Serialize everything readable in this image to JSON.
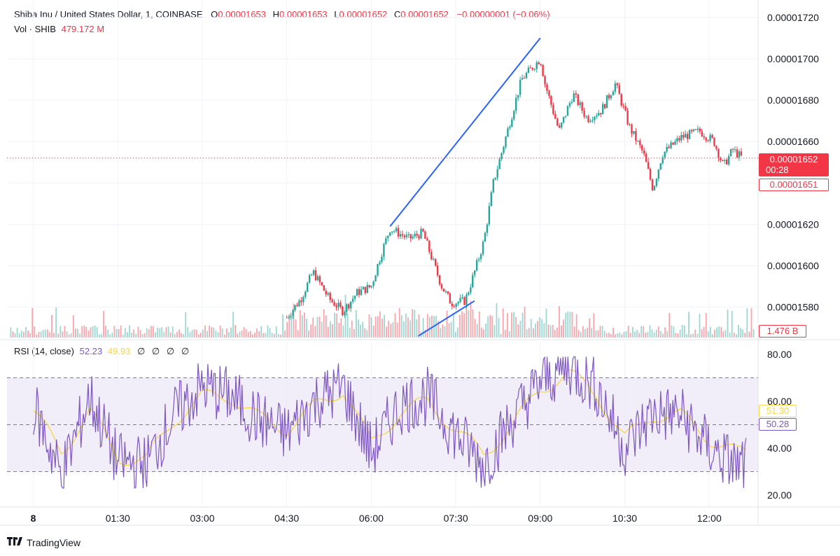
{
  "header": {
    "symbol": "Shiba Inu / United States Dollar, 1, COINBASE",
    "o_label": "O",
    "o_value": "0.00001653",
    "h_label": "H",
    "h_value": "0.00001653",
    "l_label": "L",
    "l_value": "0.00001652",
    "c_label": "C",
    "c_value": "0.00001652",
    "change": "−0.00000001 (−0.06%)",
    "vol_label": "Vol · SHIB",
    "vol_value": "479.172 M"
  },
  "rsi_header": {
    "label": "RSI (14, close)",
    "rsi_value": "52.23",
    "ma_value": "49.93",
    "na_values": [
      "∅",
      "∅",
      "∅",
      "∅"
    ]
  },
  "price_tags": {
    "last_price": "0.00001652",
    "countdown": "00:28",
    "low_price": "0.00001651",
    "volume": "1.476 B",
    "rsi_ma": "51.30",
    "rsi_value": "50.28"
  },
  "footer": {
    "brand": "TradingView"
  },
  "colors": {
    "up": "#26a69a",
    "down": "#f23645",
    "trendline": "#2962ff",
    "rsi": "#7e57c2",
    "rsi_ma": "#f7d64a",
    "band": "#ede7f6",
    "grid": "#f0f3fa"
  },
  "chart_data": [
    {
      "type": "candlestick",
      "title": "Shiba Inu / United States Dollar, 1, COINBASE",
      "x_ticks": [
        "8",
        "01:30",
        "03:00",
        "04:30",
        "06:00",
        "07:30",
        "09:00",
        "10:30",
        "12:00"
      ],
      "y_ticks": [
        "0.00001580",
        "0.00001600",
        "0.00001620",
        "0.00001640",
        "0.00001660",
        "0.00001680",
        "0.00001700",
        "0.00001720"
      ],
      "ylim": [
        1.568e-05,
        1.725e-05
      ],
      "last_price": 1.652e-05,
      "series": [
        {
          "name": "Price (approx. close path)",
          "points": [
            [
              "04:30",
              1.575e-05
            ],
            [
              "04:45",
              1.584e-05
            ],
            [
              "04:58",
              1.597e-05
            ],
            [
              "05:15",
              1.584e-05
            ],
            [
              "05:30",
              1.578e-05
            ],
            [
              "05:45",
              1.587e-05
            ],
            [
              "06:00",
              1.59e-05
            ],
            [
              "06:10",
              1.605e-05
            ],
            [
              "06:20",
              1.618e-05
            ],
            [
              "06:40",
              1.613e-05
            ],
            [
              "06:55",
              1.616e-05
            ],
            [
              "07:05",
              1.603e-05
            ],
            [
              "07:15",
              1.59e-05
            ],
            [
              "07:25",
              1.582e-05
            ],
            [
              "07:40",
              1.583e-05
            ],
            [
              "07:50",
              1.597e-05
            ],
            [
              "08:00",
              1.612e-05
            ],
            [
              "08:10",
              1.64e-05
            ],
            [
              "08:25",
              1.665e-05
            ],
            [
              "08:40",
              1.69e-05
            ],
            [
              "09:00",
              1.7e-05
            ],
            [
              "09:05",
              1.688e-05
            ],
            [
              "09:20",
              1.665e-05
            ],
            [
              "09:35",
              1.683e-05
            ],
            [
              "09:50",
              1.671e-05
            ],
            [
              "10:05",
              1.675e-05
            ],
            [
              "10:20",
              1.688e-05
            ],
            [
              "10:35",
              1.667e-05
            ],
            [
              "10:50",
              1.654e-05
            ],
            [
              "11:00",
              1.637e-05
            ],
            [
              "11:10",
              1.654e-05
            ],
            [
              "11:30",
              1.662e-05
            ],
            [
              "11:50",
              1.665e-05
            ],
            [
              "12:05",
              1.66e-05
            ],
            [
              "12:15",
              1.648e-05
            ],
            [
              "12:25",
              1.656e-05
            ],
            [
              "12:35",
              1.652e-05
            ]
          ]
        },
        {
          "name": "Trendlines",
          "lines": [
            [
              [
                "06:20",
                1.619e-05
              ],
              [
                "09:00",
                1.71e-05
              ]
            ],
            [
              [
                "06:50",
                1.566e-05
              ],
              [
                "07:50",
                1.583e-05
              ]
            ]
          ]
        }
      ]
    },
    {
      "type": "line",
      "title": "RSI (14, close)",
      "y_ticks": [
        "20.00",
        "40.00",
        "60.00",
        "80.00"
      ],
      "ylim": [
        15,
        85
      ],
      "band": [
        30,
        70
      ],
      "midline": 50,
      "series": [
        {
          "name": "RSI",
          "x": [
            "00:00",
            "00:30",
            "01:00",
            "01:30",
            "02:00",
            "02:30",
            "03:00",
            "03:30",
            "04:00",
            "04:30",
            "05:00",
            "05:30",
            "06:00",
            "06:30",
            "07:00",
            "07:30",
            "08:00",
            "08:30",
            "09:00",
            "09:30",
            "10:00",
            "10:30",
            "11:00",
            "11:30",
            "12:00",
            "12:30"
          ],
          "values": [
            58,
            28,
            62,
            34,
            33,
            54,
            66,
            62,
            52,
            46,
            60,
            66,
            38,
            58,
            62,
            46,
            33,
            52,
            68,
            75,
            66,
            40,
            55,
            54,
            40,
            32
          ]
        },
        {
          "name": "RSI-based MA",
          "x": [
            "00:00",
            "00:30",
            "01:00",
            "01:30",
            "02:00",
            "02:30",
            "03:00",
            "03:30",
            "04:00",
            "04:30",
            "05:00",
            "05:30",
            "06:00",
            "06:30",
            "07:00",
            "07:30",
            "08:00",
            "08:30",
            "09:00",
            "09:30",
            "10:00",
            "10:30",
            "11:00",
            "11:30",
            "12:00",
            "12:30"
          ],
          "values": [
            56,
            38,
            56,
            36,
            35,
            52,
            62,
            62,
            53,
            48,
            58,
            65,
            42,
            55,
            60,
            48,
            37,
            50,
            65,
            72,
            63,
            44,
            54,
            54,
            44,
            38
          ]
        }
      ]
    }
  ]
}
